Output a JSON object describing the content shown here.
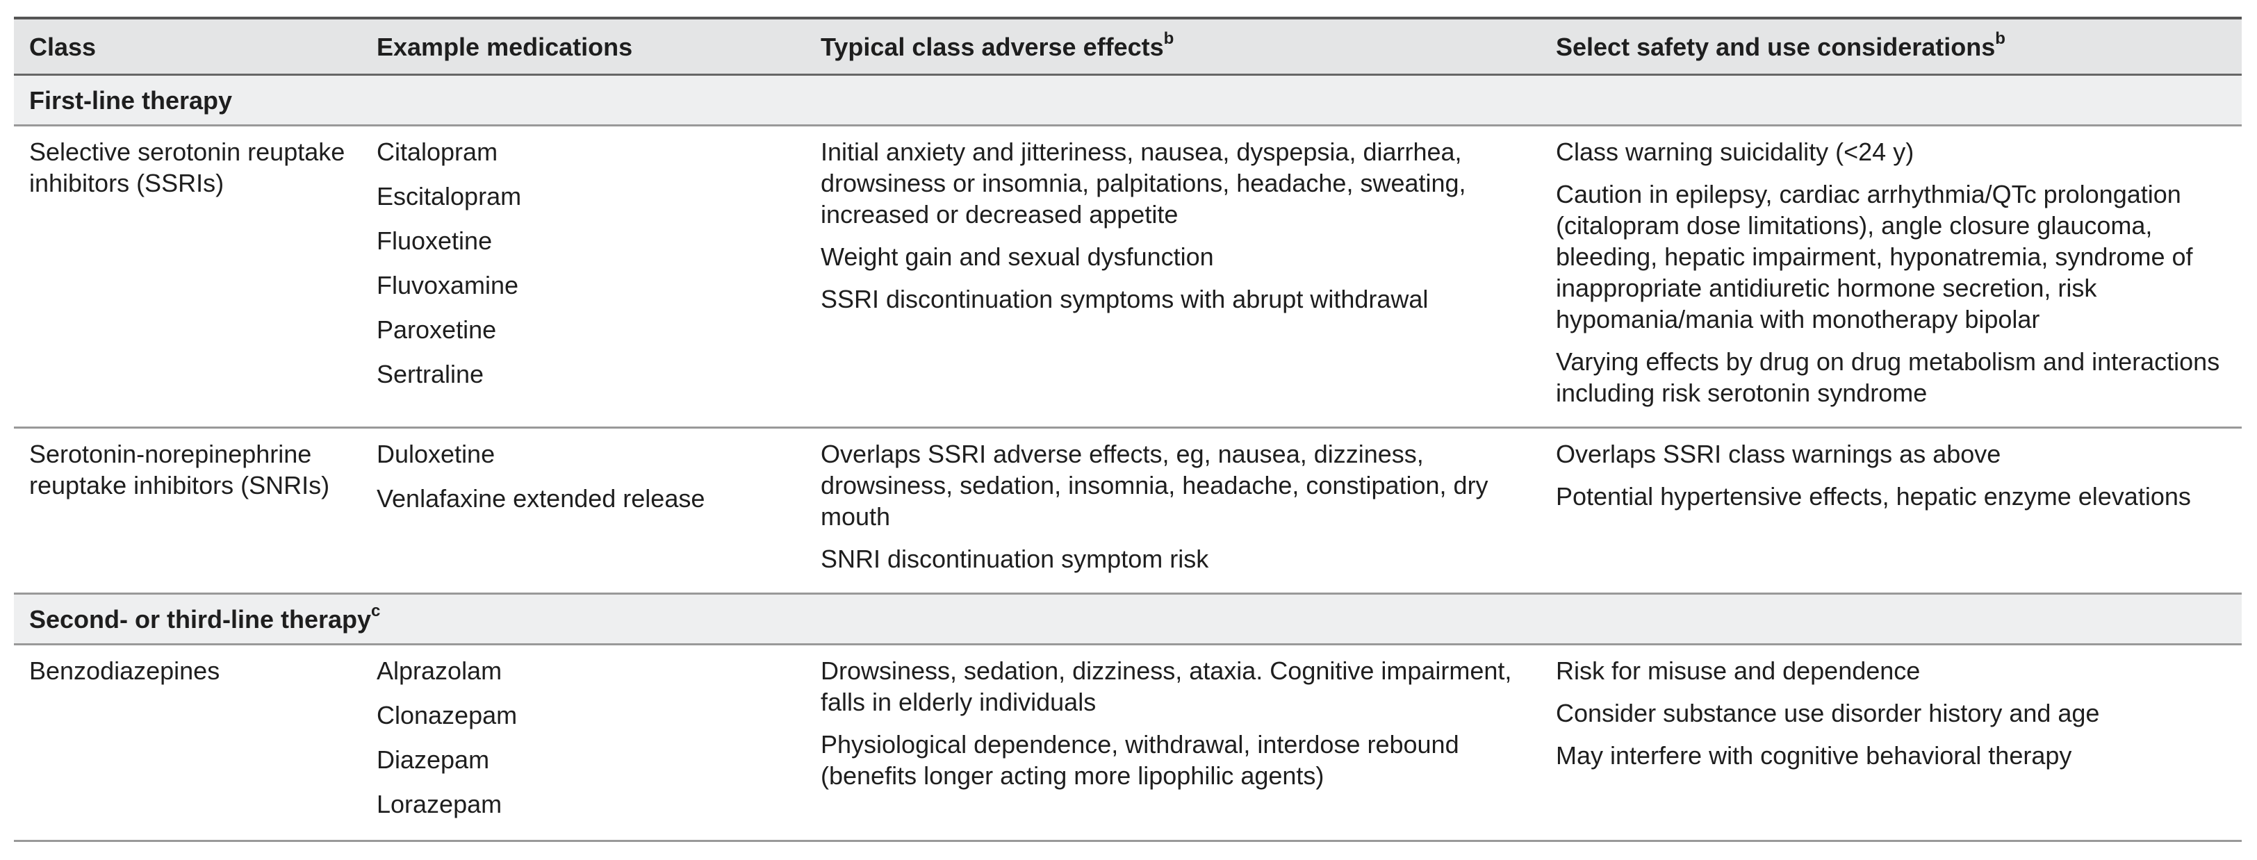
{
  "header": [
    {
      "text": "Class"
    },
    {
      "text": "Example medications"
    },
    {
      "text": "Typical class adverse effects",
      "sup": "b"
    },
    {
      "text": "Select safety and use considerations",
      "sup": "b"
    }
  ],
  "sections": [
    {
      "title": "First-line therapy",
      "rows": [
        {
          "class": "Selective serotonin reuptake inhibitors (SSRIs)",
          "medications": [
            "Citalopram",
            "Escitalopram",
            "Fluoxetine",
            "Fluvoxamine",
            "Paroxetine",
            "Sertraline"
          ],
          "adverse_effects": [
            "Initial anxiety and jitteriness, nausea, dyspepsia, diarrhea, drowsiness or insomnia, palpitations, headache, sweating, increased or decreased appetite",
            "Weight gain and sexual dysfunction",
            "SSRI discontinuation symptoms with abrupt withdrawal"
          ],
          "considerations": [
            "Class warning suicidality (<24 y)",
            "Caution in epilepsy, cardiac arrhythmia/QTc prolongation (citalopram dose limitations), angle closure glaucoma, bleeding, hepatic impairment, hyponatremia, syndrome of inappropriate antidiuretic hormone secretion, risk hypomania/mania with monotherapy bipolar",
            "Varying effects by drug on drug metabolism and interactions including risk serotonin syndrome"
          ]
        },
        {
          "class": "Serotonin-norepinephrine reuptake inhibitors (SNRIs)",
          "medications": [
            "Duloxetine",
            "Venlafaxine extended release"
          ],
          "adverse_effects": [
            "Overlaps SSRI adverse effects, eg, nausea, dizziness, drowsiness, sedation, insomnia, headache, constipation, dry mouth",
            "SNRI discontinuation symptom risk"
          ],
          "considerations": [
            "Overlaps SSRI class warnings as above",
            "Potential hypertensive effects, hepatic enzyme elevations"
          ]
        }
      ]
    },
    {
      "title": "Second- or third-line therapy",
      "sup": "c",
      "rows": [
        {
          "class": "Benzodiazepines",
          "medications": [
            "Alprazolam",
            "Clonazepam",
            "Diazepam",
            "Lorazepam"
          ],
          "adverse_effects": [
            "Drowsiness, sedation, dizziness, ataxia. Cognitive impairment, falls in elderly individuals",
            "Physiological dependence, withdrawal, interdose rebound (benefits longer acting more lipophilic agents)"
          ],
          "considerations": [
            "Risk for misuse and dependence",
            "Consider substance use disorder history and age",
            "May interfere with cognitive behavioral therapy"
          ]
        }
      ]
    }
  ]
}
